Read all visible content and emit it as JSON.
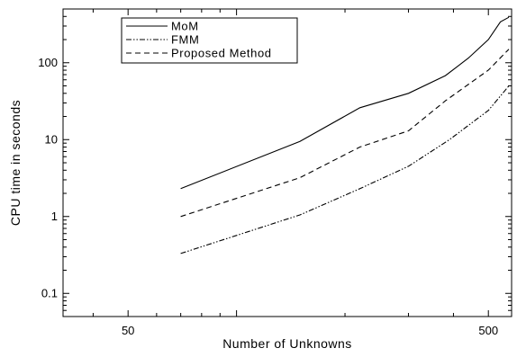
{
  "chart_data": {
    "type": "line",
    "xlabel": "Number of Unknowns",
    "ylabel": "CPU time in seconds",
    "x_scale": "log",
    "y_scale": "log",
    "xlim": [
      33,
      580
    ],
    "ylim": [
      0.05,
      500
    ],
    "x_ticks": [
      {
        "value": 50,
        "label": "50"
      },
      {
        "value": 500,
        "label": "500"
      }
    ],
    "y_ticks": [
      {
        "value": 0.1,
        "label": "0.1"
      },
      {
        "value": 1,
        "label": "1"
      },
      {
        "value": 10,
        "label": "10"
      },
      {
        "value": 100,
        "label": "100"
      }
    ],
    "grid": false,
    "legend_position": "top-left",
    "series": [
      {
        "name": "MoM",
        "dash": "solid",
        "x": [
          70,
          150,
          220,
          300,
          380,
          440,
          500,
          540,
          570
        ],
        "y": [
          2.3,
          9.5,
          26,
          40,
          68,
          115,
          200,
          340,
          390
        ]
      },
      {
        "name": "FMM",
        "dash": "dash-dot-dot",
        "x": [
          70,
          150,
          220,
          300,
          390,
          500,
          570
        ],
        "y": [
          0.33,
          1.05,
          2.3,
          4.5,
          10,
          24,
          50
        ]
      },
      {
        "name": "Proposed Method",
        "dash": "dashed",
        "x": [
          70,
          150,
          220,
          300,
          380,
          500,
          570
        ],
        "y": [
          1.0,
          3.2,
          8.0,
          13,
          32,
          80,
          150
        ]
      }
    ]
  }
}
